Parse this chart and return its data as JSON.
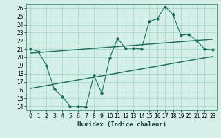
{
  "title": "",
  "xlabel": "Humidex (Indice chaleur)",
  "ylabel": "",
  "bg_color": "#d4eee8",
  "grid_color": "#a8d8cc",
  "line_color": "#1a6b5a",
  "xlim": [
    -0.5,
    23.5
  ],
  "ylim": [
    13.5,
    26.5
  ],
  "xticks": [
    0,
    1,
    2,
    3,
    4,
    5,
    6,
    7,
    8,
    9,
    10,
    11,
    12,
    13,
    14,
    15,
    16,
    17,
    18,
    19,
    20,
    21,
    22,
    23
  ],
  "yticks": [
    14,
    15,
    16,
    17,
    18,
    19,
    20,
    21,
    22,
    23,
    24,
    25,
    26
  ],
  "line1_x": [
    0,
    1,
    2,
    3,
    4,
    5,
    6,
    7,
    8,
    9,
    10,
    11,
    12,
    13,
    14,
    15,
    16,
    17,
    18,
    19,
    20,
    21,
    22,
    23
  ],
  "line1_y": [
    21.0,
    20.7,
    19.0,
    16.1,
    15.2,
    14.0,
    14.0,
    13.9,
    17.8,
    15.6,
    19.9,
    22.3,
    21.1,
    21.1,
    21.0,
    24.4,
    24.7,
    26.2,
    25.2,
    22.7,
    22.8,
    22.0,
    21.0,
    20.9
  ],
  "line2_x": [
    0,
    23
  ],
  "line2_y": [
    20.5,
    22.2
  ],
  "line3_x": [
    0,
    23
  ],
  "line3_y": [
    16.2,
    20.1
  ],
  "tick_fontsize": 5.5,
  "xlabel_fontsize": 6.5
}
